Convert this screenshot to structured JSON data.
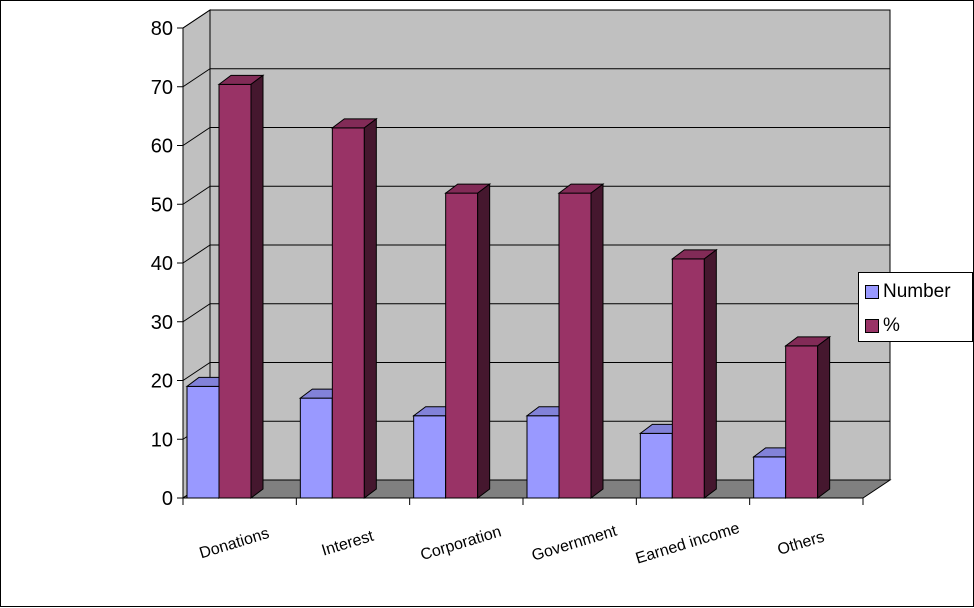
{
  "chart_data": {
    "type": "bar",
    "title": "",
    "xlabel": "",
    "ylabel": "",
    "ylim": [
      0,
      80
    ],
    "y_ticks": [
      "0",
      "10",
      "20",
      "30",
      "40",
      "50",
      "60",
      "70",
      "80"
    ],
    "categories": [
      "Donations",
      "Interest",
      "Corporation",
      "Government",
      "Earned income",
      "Others"
    ],
    "series": [
      {
        "name": "Number",
        "values": [
          19,
          17,
          14,
          14,
          11,
          7
        ],
        "color": "#9999ff"
      },
      {
        "name": "%",
        "values": [
          70.4,
          63,
          51.9,
          51.9,
          40.7,
          25.9
        ],
        "color": "#993366"
      }
    ],
    "grid": true,
    "three_d": true,
    "legend_position": "right",
    "wall_color": "#c0c0c0",
    "floor_color": "#808080"
  }
}
